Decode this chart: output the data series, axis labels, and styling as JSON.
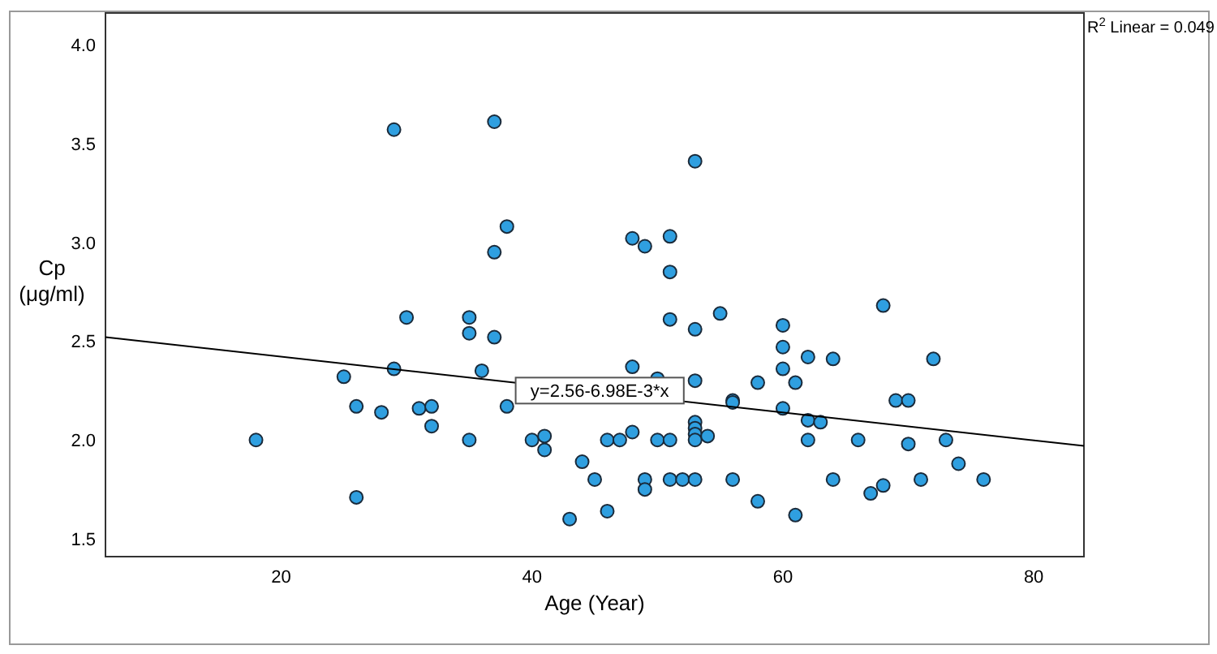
{
  "chart_data": {
    "type": "scatter",
    "xlabel": "Age (Year)",
    "ylabel": "Cp (μg/ml)",
    "xlim": [
      6,
      84
    ],
    "ylim": [
      1.41,
      4.16
    ],
    "xticks": [
      20,
      40,
      60,
      80
    ],
    "yticks": [
      {
        "value": 1.5,
        "label": "1.5"
      },
      {
        "value": 2,
        "label": "2.0"
      },
      {
        "value": 2.5,
        "label": "2.5"
      },
      {
        "value": 3,
        "label": "3.0"
      },
      {
        "value": 3.5,
        "label": "3.5"
      },
      {
        "value": 4,
        "label": "4.0"
      }
    ],
    "grid": false,
    "series": [
      {
        "marker": "circle",
        "color": "#2f9fe0",
        "x": [
          18,
          29,
          37,
          38,
          37,
          30,
          35,
          35,
          37,
          29,
          25,
          36,
          26,
          28,
          31,
          32,
          32,
          35,
          26,
          38,
          53,
          48,
          49,
          51,
          51,
          51,
          53,
          55,
          60,
          60,
          62,
          60,
          61,
          58,
          53,
          48,
          50,
          56,
          56,
          60,
          62,
          63,
          53,
          53,
          53,
          53,
          54,
          40,
          41,
          41,
          46,
          47,
          48,
          50,
          51,
          62,
          44,
          45,
          49,
          49,
          51,
          52,
          53,
          56,
          58,
          61,
          43,
          46,
          68,
          64,
          72,
          69,
          70,
          66,
          70,
          73,
          74,
          64,
          67,
          68,
          71,
          76
        ],
        "values": [
          2.0,
          3.57,
          3.61,
          3.08,
          2.95,
          2.62,
          2.62,
          2.54,
          2.52,
          2.36,
          2.32,
          2.35,
          2.17,
          2.14,
          2.16,
          2.17,
          2.07,
          2.0,
          1.71,
          2.17,
          3.41,
          3.02,
          2.98,
          3.03,
          2.85,
          2.61,
          2.56,
          2.64,
          2.58,
          2.47,
          2.42,
          2.36,
          2.29,
          2.29,
          2.3,
          2.37,
          2.31,
          2.2,
          2.19,
          2.16,
          2.1,
          2.09,
          2.09,
          2.06,
          2.03,
          2.0,
          2.02,
          2.0,
          2.02,
          1.95,
          2.0,
          2.0,
          2.04,
          2.0,
          2.0,
          2.0,
          1.89,
          1.8,
          1.8,
          1.75,
          1.8,
          1.8,
          1.8,
          1.8,
          1.69,
          1.62,
          1.6,
          1.64,
          2.68,
          2.41,
          2.41,
          2.2,
          2.2,
          2.0,
          1.98,
          2.0,
          1.88,
          1.8,
          1.73,
          1.77,
          1.8,
          1.8
        ]
      },
      {
        "type": "line",
        "marker": "none",
        "color": "#000000",
        "x": [
          6,
          84
        ],
        "values": [
          2.52,
          1.97
        ]
      }
    ],
    "annotations": [
      {
        "text": "y=2.56-6.98E-3*x",
        "x": 45.4,
        "y": 2.25
      },
      "R$^{2}$ Linear = 0.049"
    ]
  }
}
